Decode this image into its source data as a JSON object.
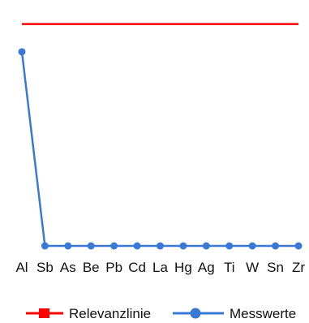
{
  "chart_data": {
    "type": "line",
    "categories": [
      "Al",
      "Sb",
      "As",
      "Be",
      "Pb",
      "Cd",
      "La",
      "Hg",
      "Ag",
      "Ti",
      "W",
      "Sn",
      "Zr"
    ],
    "series": [
      {
        "name": "Relevanzlinie",
        "color": "#ff0000",
        "marker": "square",
        "values": [
          40,
          40,
          40,
          40,
          40,
          40,
          40,
          40,
          40,
          40,
          40,
          40,
          40
        ]
      },
      {
        "name": "Messwerte",
        "color": "#3a78d6",
        "marker": "circle",
        "values": [
          35,
          0,
          0,
          0,
          0,
          0,
          0,
          0,
          0,
          0,
          0,
          0,
          0
        ]
      }
    ],
    "ylim": [
      0,
      42
    ],
    "grid": false,
    "legend_position": "bottom",
    "title": "",
    "xlabel": "",
    "ylabel": ""
  }
}
